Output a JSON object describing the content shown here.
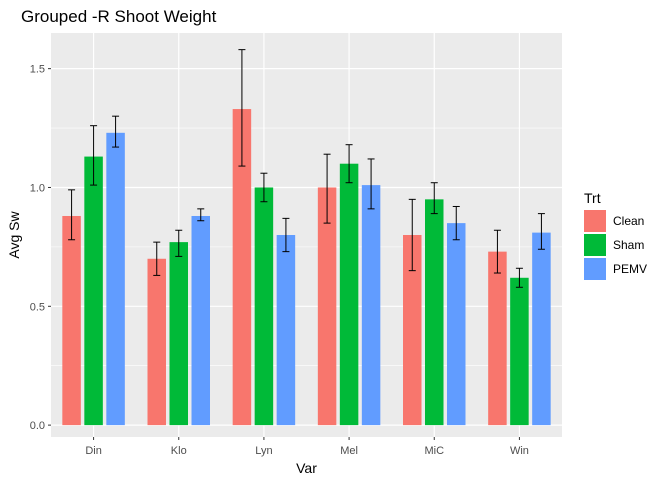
{
  "chart_data": {
    "type": "bar",
    "title": "Grouped -R Shoot Weight",
    "xlabel": "Var",
    "ylabel": "Avg Sw",
    "categories": [
      "Din",
      "Klo",
      "Lyn",
      "Mel",
      "MiC",
      "Win"
    ],
    "ylim": [
      -0.05,
      1.65
    ],
    "yticks": [
      0.0,
      0.5,
      1.0,
      1.5
    ],
    "ytick_labels": [
      "0.0",
      "0.5",
      "1.0",
      "1.5"
    ],
    "grid": true,
    "legend": {
      "title": "Trt",
      "position": "right"
    },
    "series": [
      {
        "name": "Clean",
        "color": "#F8766D",
        "values": [
          0.88,
          0.7,
          1.33,
          1.0,
          0.8,
          0.73
        ],
        "err_low": [
          0.78,
          0.63,
          1.09,
          0.85,
          0.65,
          0.64
        ],
        "err_high": [
          0.99,
          0.77,
          1.58,
          1.14,
          0.95,
          0.82
        ]
      },
      {
        "name": "Sham",
        "color": "#00BA38",
        "values": [
          1.13,
          0.77,
          1.0,
          1.1,
          0.95,
          0.62
        ],
        "err_low": [
          1.01,
          0.71,
          0.94,
          1.02,
          0.89,
          0.58
        ],
        "err_high": [
          1.26,
          0.82,
          1.06,
          1.18,
          1.02,
          0.66
        ]
      },
      {
        "name": "PEMV",
        "color": "#619CFF",
        "values": [
          1.23,
          0.88,
          0.8,
          1.01,
          0.85,
          0.81
        ],
        "err_low": [
          1.17,
          0.86,
          0.73,
          0.91,
          0.78,
          0.74
        ],
        "err_high": [
          1.3,
          0.91,
          0.87,
          1.12,
          0.92,
          0.89
        ]
      }
    ]
  }
}
